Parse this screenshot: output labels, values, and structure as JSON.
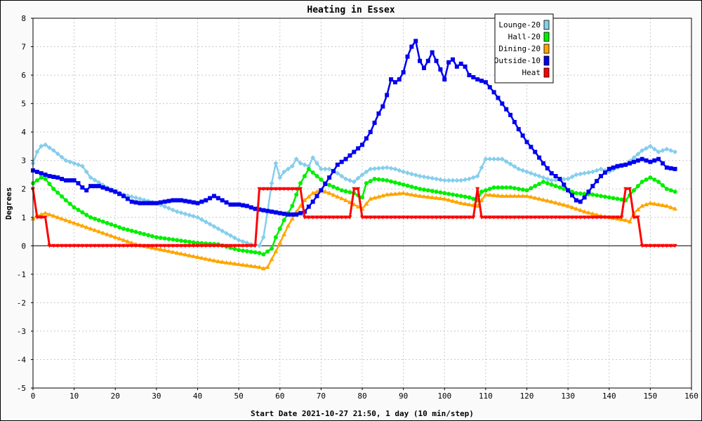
{
  "chart_data": {
    "type": "line",
    "title": "Heating in Essex",
    "xlabel": "Start Date 2021-10-27 21:50, 1 day (10 min/step)",
    "ylabel": "Degrees",
    "xlim": [
      0,
      160
    ],
    "ylim": [
      -5,
      8
    ],
    "x_ticks": [
      0,
      10,
      20,
      30,
      40,
      50,
      60,
      70,
      80,
      90,
      100,
      110,
      120,
      130,
      140,
      150,
      160
    ],
    "y_ticks": [
      8,
      7,
      6,
      5,
      4,
      3,
      2,
      1,
      0,
      -1,
      -2,
      -3,
      -4,
      -5
    ],
    "grid": true,
    "legend_position": "top-right",
    "series": [
      {
        "name": "Lounge-20",
        "color": "#87ceeb",
        "marker": "diamond",
        "keyframes": [
          [
            0,
            2.9
          ],
          [
            1,
            3.3
          ],
          [
            2,
            3.5
          ],
          [
            3,
            3.55
          ],
          [
            5,
            3.35
          ],
          [
            8,
            3.0
          ],
          [
            12,
            2.8
          ],
          [
            14,
            2.4
          ],
          [
            18,
            2.05
          ],
          [
            22,
            1.8
          ],
          [
            26,
            1.65
          ],
          [
            30,
            1.5
          ],
          [
            35,
            1.2
          ],
          [
            40,
            1.0
          ],
          [
            45,
            0.6
          ],
          [
            50,
            0.2
          ],
          [
            53,
            0.05
          ],
          [
            55,
            0.0
          ],
          [
            56,
            0.3
          ],
          [
            57,
            1.2
          ],
          [
            58,
            2.2
          ],
          [
            59,
            2.9
          ],
          [
            60,
            2.4
          ],
          [
            61,
            2.6
          ],
          [
            63,
            2.8
          ],
          [
            64,
            3.05
          ],
          [
            65,
            2.9
          ],
          [
            67,
            2.8
          ],
          [
            68,
            3.1
          ],
          [
            70,
            2.7
          ],
          [
            72,
            2.7
          ],
          [
            74,
            2.55
          ],
          [
            76,
            2.35
          ],
          [
            78,
            2.25
          ],
          [
            80,
            2.5
          ],
          [
            82,
            2.7
          ],
          [
            86,
            2.75
          ],
          [
            88,
            2.7
          ],
          [
            90,
            2.6
          ],
          [
            94,
            2.45
          ],
          [
            100,
            2.3
          ],
          [
            104,
            2.3
          ],
          [
            106,
            2.35
          ],
          [
            108,
            2.45
          ],
          [
            110,
            3.05
          ],
          [
            114,
            3.05
          ],
          [
            118,
            2.7
          ],
          [
            122,
            2.5
          ],
          [
            126,
            2.3
          ],
          [
            130,
            2.35
          ],
          [
            132,
            2.5
          ],
          [
            136,
            2.6
          ],
          [
            138,
            2.7
          ],
          [
            140,
            2.6
          ],
          [
            142,
            2.75
          ],
          [
            144,
            2.85
          ],
          [
            146,
            3.1
          ],
          [
            148,
            3.35
          ],
          [
            150,
            3.5
          ],
          [
            152,
            3.3
          ],
          [
            154,
            3.4
          ],
          [
            156,
            3.3
          ]
        ]
      },
      {
        "name": "Hall-20",
        "color": "#00ee00",
        "marker": "circle",
        "keyframes": [
          [
            0,
            2.2
          ],
          [
            2,
            2.4
          ],
          [
            3,
            2.35
          ],
          [
            5,
            2.0
          ],
          [
            8,
            1.6
          ],
          [
            10,
            1.35
          ],
          [
            14,
            1.0
          ],
          [
            18,
            0.8
          ],
          [
            22,
            0.6
          ],
          [
            26,
            0.45
          ],
          [
            30,
            0.3
          ],
          [
            35,
            0.2
          ],
          [
            40,
            0.1
          ],
          [
            45,
            0.05
          ],
          [
            50,
            -0.15
          ],
          [
            55,
            -0.25
          ],
          [
            56,
            -0.3
          ],
          [
            58,
            -0.1
          ],
          [
            59,
            0.3
          ],
          [
            61,
            0.9
          ],
          [
            63,
            1.4
          ],
          [
            65,
            2.2
          ],
          [
            67,
            2.7
          ],
          [
            69,
            2.45
          ],
          [
            71,
            2.2
          ],
          [
            75,
            1.95
          ],
          [
            78,
            1.85
          ],
          [
            80,
            1.7
          ],
          [
            81,
            2.2
          ],
          [
            83,
            2.35
          ],
          [
            86,
            2.3
          ],
          [
            90,
            2.15
          ],
          [
            94,
            2.0
          ],
          [
            100,
            1.85
          ],
          [
            104,
            1.75
          ],
          [
            106,
            1.7
          ],
          [
            108,
            1.6
          ],
          [
            109,
            1.9
          ],
          [
            112,
            2.05
          ],
          [
            116,
            2.05
          ],
          [
            120,
            1.95
          ],
          [
            124,
            2.25
          ],
          [
            128,
            2.05
          ],
          [
            132,
            1.85
          ],
          [
            136,
            1.8
          ],
          [
            140,
            1.7
          ],
          [
            144,
            1.6
          ],
          [
            146,
            1.95
          ],
          [
            148,
            2.25
          ],
          [
            150,
            2.4
          ],
          [
            152,
            2.25
          ],
          [
            154,
            2.0
          ],
          [
            156,
            1.9
          ]
        ]
      },
      {
        "name": "Dining-20",
        "color": "#ffa500",
        "marker": "triangle",
        "keyframes": [
          [
            0,
            0.95
          ],
          [
            1,
            1.05
          ],
          [
            3,
            1.15
          ],
          [
            5,
            1.05
          ],
          [
            8,
            0.9
          ],
          [
            12,
            0.7
          ],
          [
            16,
            0.5
          ],
          [
            20,
            0.3
          ],
          [
            25,
            0.05
          ],
          [
            30,
            -0.1
          ],
          [
            35,
            -0.25
          ],
          [
            40,
            -0.4
          ],
          [
            45,
            -0.55
          ],
          [
            50,
            -0.65
          ],
          [
            55,
            -0.75
          ],
          [
            56,
            -0.8
          ],
          [
            57,
            -0.75
          ],
          [
            59,
            -0.2
          ],
          [
            60,
            0.1
          ],
          [
            62,
            0.7
          ],
          [
            64,
            1.2
          ],
          [
            66,
            1.6
          ],
          [
            68,
            1.85
          ],
          [
            70,
            1.95
          ],
          [
            72,
            1.85
          ],
          [
            76,
            1.6
          ],
          [
            78,
            1.45
          ],
          [
            80,
            1.3
          ],
          [
            82,
            1.65
          ],
          [
            86,
            1.8
          ],
          [
            90,
            1.85
          ],
          [
            94,
            1.75
          ],
          [
            100,
            1.65
          ],
          [
            104,
            1.5
          ],
          [
            106,
            1.45
          ],
          [
            108,
            1.4
          ],
          [
            110,
            1.8
          ],
          [
            114,
            1.75
          ],
          [
            120,
            1.75
          ],
          [
            126,
            1.55
          ],
          [
            130,
            1.4
          ],
          [
            134,
            1.2
          ],
          [
            138,
            1.05
          ],
          [
            142,
            0.95
          ],
          [
            144,
            0.9
          ],
          [
            145,
            0.85
          ],
          [
            146,
            1.15
          ],
          [
            148,
            1.4
          ],
          [
            150,
            1.5
          ],
          [
            152,
            1.45
          ],
          [
            154,
            1.4
          ],
          [
            156,
            1.3
          ]
        ]
      },
      {
        "name": "Outside-10",
        "color": "#0000ee",
        "marker": "square",
        "keyframes": [
          [
            0,
            2.65
          ],
          [
            2,
            2.55
          ],
          [
            4,
            2.45
          ],
          [
            6,
            2.4
          ],
          [
            8,
            2.3
          ],
          [
            10,
            2.3
          ],
          [
            11,
            2.2
          ],
          [
            12,
            2.05
          ],
          [
            13,
            1.95
          ],
          [
            14,
            2.1
          ],
          [
            16,
            2.1
          ],
          [
            18,
            2.0
          ],
          [
            20,
            1.9
          ],
          [
            22,
            1.75
          ],
          [
            24,
            1.55
          ],
          [
            26,
            1.5
          ],
          [
            28,
            1.5
          ],
          [
            30,
            1.5
          ],
          [
            32,
            1.55
          ],
          [
            34,
            1.6
          ],
          [
            36,
            1.6
          ],
          [
            38,
            1.55
          ],
          [
            40,
            1.5
          ],
          [
            42,
            1.6
          ],
          [
            44,
            1.75
          ],
          [
            46,
            1.6
          ],
          [
            48,
            1.45
          ],
          [
            50,
            1.45
          ],
          [
            52,
            1.4
          ],
          [
            54,
            1.3
          ],
          [
            56,
            1.25
          ],
          [
            58,
            1.2
          ],
          [
            60,
            1.15
          ],
          [
            62,
            1.1
          ],
          [
            64,
            1.1
          ],
          [
            66,
            1.2
          ],
          [
            68,
            1.55
          ],
          [
            70,
            1.95
          ],
          [
            72,
            2.4
          ],
          [
            74,
            2.85
          ],
          [
            76,
            3.05
          ],
          [
            78,
            3.3
          ],
          [
            80,
            3.55
          ],
          [
            82,
            4.0
          ],
          [
            84,
            4.65
          ],
          [
            85,
            4.9
          ],
          [
            86,
            5.3
          ],
          [
            87,
            5.85
          ],
          [
            88,
            5.75
          ],
          [
            89,
            5.85
          ],
          [
            90,
            6.1
          ],
          [
            91,
            6.65
          ],
          [
            92,
            7.0
          ],
          [
            93,
            7.2
          ],
          [
            94,
            6.5
          ],
          [
            95,
            6.25
          ],
          [
            96,
            6.5
          ],
          [
            97,
            6.8
          ],
          [
            98,
            6.5
          ],
          [
            99,
            6.2
          ],
          [
            100,
            5.85
          ],
          [
            101,
            6.45
          ],
          [
            102,
            6.55
          ],
          [
            103,
            6.3
          ],
          [
            104,
            6.4
          ],
          [
            105,
            6.3
          ],
          [
            106,
            6.0
          ],
          [
            108,
            5.85
          ],
          [
            110,
            5.75
          ],
          [
            112,
            5.4
          ],
          [
            114,
            5.0
          ],
          [
            116,
            4.6
          ],
          [
            118,
            4.1
          ],
          [
            120,
            3.65
          ],
          [
            122,
            3.3
          ],
          [
            124,
            2.9
          ],
          [
            126,
            2.55
          ],
          [
            128,
            2.35
          ],
          [
            130,
            1.95
          ],
          [
            132,
            1.6
          ],
          [
            133,
            1.55
          ],
          [
            134,
            1.7
          ],
          [
            136,
            2.1
          ],
          [
            138,
            2.45
          ],
          [
            140,
            2.7
          ],
          [
            142,
            2.8
          ],
          [
            144,
            2.85
          ],
          [
            146,
            2.95
          ],
          [
            148,
            3.05
          ],
          [
            150,
            2.95
          ],
          [
            152,
            3.05
          ],
          [
            154,
            2.75
          ],
          [
            156,
            2.7
          ]
        ]
      },
      {
        "name": "Heat",
        "color": "#ff0000",
        "marker": "triangle-down",
        "keyframes": [
          [
            0,
            2.0
          ],
          [
            1,
            1.0
          ],
          [
            3,
            1.0
          ],
          [
            4,
            0.0
          ],
          [
            54,
            0.0
          ],
          [
            55,
            2.0
          ],
          [
            65,
            2.0
          ],
          [
            66,
            1.0
          ],
          [
            77,
            1.0
          ],
          [
            78,
            2.0
          ],
          [
            79,
            2.0
          ],
          [
            80,
            1.0
          ],
          [
            107,
            1.0
          ],
          [
            108,
            2.0
          ],
          [
            109,
            1.0
          ],
          [
            143,
            1.0
          ],
          [
            144,
            2.0
          ],
          [
            145,
            2.0
          ],
          [
            146,
            1.0
          ],
          [
            147,
            1.0
          ],
          [
            148,
            0.0
          ],
          [
            156,
            0.0
          ]
        ]
      }
    ]
  }
}
